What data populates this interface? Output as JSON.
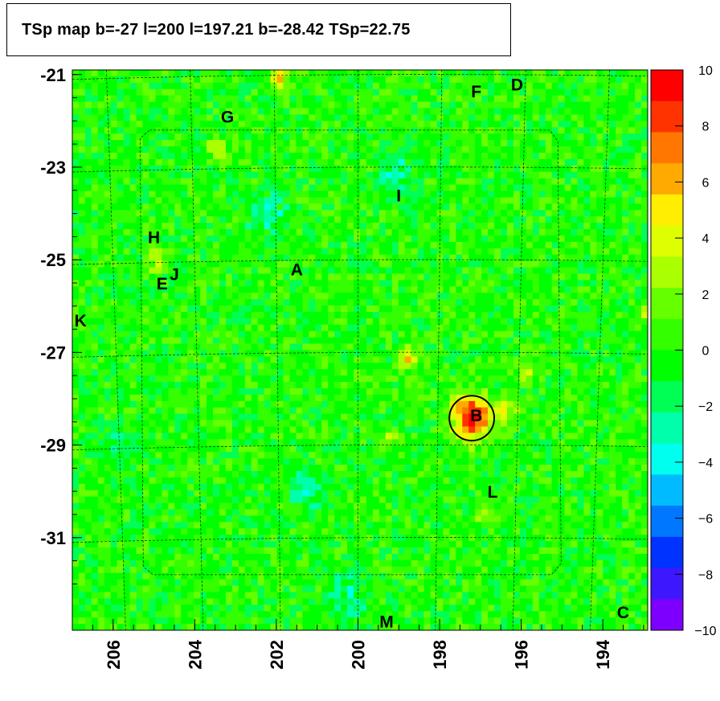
{
  "chart_data": {
    "type": "heatmap",
    "title": "TSp map b=-27 l=200 l=197.21 b=-28.42 TSp=22.75",
    "x_axis": {
      "reversed": true,
      "range": [
        207,
        192.9
      ],
      "ticks": [
        "206",
        "204",
        "202",
        "200",
        "198",
        "196",
        "194"
      ],
      "tick_values": [
        206,
        204,
        202,
        200,
        198,
        196,
        194
      ]
    },
    "y_axis": {
      "range": [
        -33.0,
        -20.9
      ],
      "ticks": [
        "-21",
        "-23",
        "-25",
        "-27",
        "-29",
        "-31"
      ],
      "tick_values": [
        -21,
        -23,
        -25,
        -27,
        -29,
        -31
      ]
    },
    "colorbar": {
      "range": [
        -10,
        10
      ],
      "ticks": [
        "10",
        "8",
        "6",
        "4",
        "2",
        "0",
        "−2",
        "−4",
        "−6",
        "−8",
        "−10"
      ],
      "tick_values": [
        10,
        8,
        6,
        4,
        2,
        0,
        -2,
        -4,
        -6,
        -8,
        -10
      ]
    },
    "typical_value": 0,
    "hotspots": [
      {
        "l": 197.2,
        "b": -28.4,
        "value": 10
      },
      {
        "l": 198.8,
        "b": -27.1,
        "value": 5
      },
      {
        "l": 196.4,
        "b": -28.3,
        "value": 4
      },
      {
        "l": 199.2,
        "b": -28.9,
        "value": 3
      },
      {
        "l": 204.9,
        "b": -25.0,
        "value": 4
      },
      {
        "l": 201.9,
        "b": -21.1,
        "value": 5
      },
      {
        "l": 203.4,
        "b": -22.6,
        "value": 3
      },
      {
        "l": 196.8,
        "b": -30.5,
        "value": 3
      },
      {
        "l": 193.0,
        "b": -26.2,
        "value": 3
      },
      {
        "l": 195.8,
        "b": -27.4,
        "value": 3
      }
    ],
    "coldspots": [
      {
        "l": 199.1,
        "b": -23.2,
        "value": -3
      },
      {
        "l": 202.2,
        "b": -24.0,
        "value": -3
      },
      {
        "l": 201.2,
        "b": -30.0,
        "value": -3
      },
      {
        "l": 200.3,
        "b": -32.3,
        "value": -3
      },
      {
        "l": 205.8,
        "b": -29.0,
        "value": -2
      }
    ],
    "sources": [
      {
        "label": "A",
        "l": 201.5,
        "b": -25.2
      },
      {
        "label": "B",
        "l": 197.1,
        "b": -28.35
      },
      {
        "label": "C",
        "l": 193.5,
        "b": -32.6
      },
      {
        "label": "D",
        "l": 196.1,
        "b": -21.2
      },
      {
        "label": "E",
        "l": 204.8,
        "b": -25.5
      },
      {
        "label": "F",
        "l": 197.1,
        "b": -21.35
      },
      {
        "label": "G",
        "l": 203.2,
        "b": -21.9
      },
      {
        "label": "H",
        "l": 205.0,
        "b": -24.5
      },
      {
        "label": "I",
        "l": 199.0,
        "b": -23.6
      },
      {
        "label": "J",
        "l": 204.5,
        "b": -25.3
      },
      {
        "label": "K",
        "l": 206.8,
        "b": -26.3
      },
      {
        "label": "L",
        "l": 196.7,
        "b": -30.0
      },
      {
        "label": "M",
        "l": 199.3,
        "b": -32.8
      }
    ],
    "circle": {
      "l": 197.21,
      "b": -28.42,
      "radius_deg": 0.55
    },
    "graticule_l": [
      206,
      204,
      202,
      200,
      198,
      196,
      194
    ],
    "graticule_b": [
      -21,
      -23,
      -25,
      -27,
      -29,
      -31
    ],
    "grid": true
  }
}
